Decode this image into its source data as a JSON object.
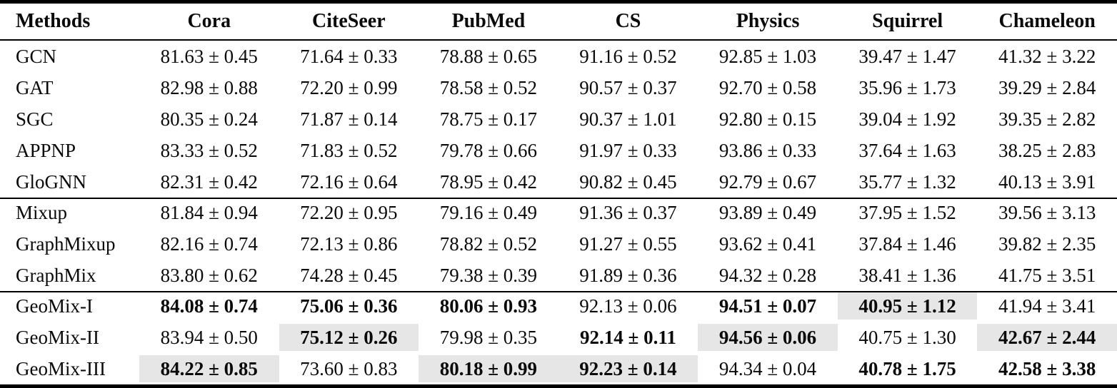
{
  "table": {
    "highlight_color": "#e6e6e6",
    "columns": [
      "Methods",
      "Cora",
      "CiteSeer",
      "PubMed",
      "CS",
      "Physics",
      "Squirrel",
      "Chameleon"
    ],
    "groups": [
      {
        "rows": [
          {
            "method": "GCN",
            "cells": [
              "81.63 ± 0.45",
              "71.64 ± 0.33",
              "78.88 ± 0.65",
              "91.16 ± 0.52",
              "92.85 ± 1.03",
              "39.47 ± 1.47",
              "41.32 ± 3.22"
            ]
          },
          {
            "method": "GAT",
            "cells": [
              "82.98 ± 0.88",
              "72.20 ± 0.99",
              "78.58 ± 0.52",
              "90.57 ± 0.37",
              "92.70 ± 0.58",
              "35.96 ± 1.73",
              "39.29 ± 2.84"
            ]
          },
          {
            "method": "SGC",
            "cells": [
              "80.35 ± 0.24",
              "71.87 ± 0.14",
              "78.75 ± 0.17",
              "90.37 ± 1.01",
              "92.80 ± 0.15",
              "39.04 ± 1.92",
              "39.35 ± 2.82"
            ]
          },
          {
            "method": "APPNP",
            "cells": [
              "83.33 ± 0.52",
              "71.83 ± 0.52",
              "79.78 ± 0.66",
              "91.97 ± 0.33",
              "93.86 ± 0.33",
              "37.64 ± 1.63",
              "38.25 ± 2.83"
            ]
          },
          {
            "method": "GloGNN",
            "cells": [
              "82.31 ± 0.42",
              "72.16 ± 0.64",
              "78.95 ± 0.42",
              "90.82 ± 0.45",
              "92.79 ± 0.67",
              "35.77 ± 1.32",
              "40.13 ± 3.91"
            ]
          }
        ]
      },
      {
        "rows": [
          {
            "method": "Mixup",
            "cells": [
              "81.84 ± 0.94",
              "72.20 ± 0.95",
              "79.16 ± 0.49",
              "91.36 ± 0.37",
              "93.89 ± 0.49",
              "37.95 ± 1.52",
              "39.56 ± 3.13"
            ]
          },
          {
            "method": "GraphMixup",
            "cells": [
              "82.16 ± 0.74",
              "72.13 ± 0.86",
              "78.82 ± 0.52",
              "91.27 ± 0.55",
              "93.62 ± 0.41",
              "37.84 ± 1.46",
              "39.82 ± 2.35"
            ]
          },
          {
            "method": "GraphMix",
            "cells": [
              "83.80 ± 0.62",
              "74.28 ± 0.45",
              "79.38 ± 0.39",
              "91.89 ± 0.36",
              "94.32 ± 0.28",
              "38.41 ± 1.36",
              "41.75 ± 3.51"
            ]
          }
        ]
      },
      {
        "rows": [
          {
            "method": "GeoMix-I",
            "cells": [
              {
                "text": "84.08 ± 0.74",
                "bold": true
              },
              {
                "text": "75.06 ± 0.36",
                "bold": true
              },
              {
                "text": "80.06 ± 0.93",
                "bold": true
              },
              "92.13 ± 0.06",
              {
                "text": "94.51 ± 0.07",
                "bold": true
              },
              {
                "text": "40.95 ± 1.12",
                "bold": true,
                "highlight": true
              },
              "41.94 ± 3.41"
            ]
          },
          {
            "method": "GeoMix-II",
            "cells": [
              "83.94 ± 0.50",
              {
                "text": "75.12 ± 0.26",
                "bold": true,
                "highlight": true
              },
              "79.98 ± 0.35",
              {
                "text": "92.14 ± 0.11",
                "bold": true
              },
              {
                "text": "94.56 ± 0.06",
                "bold": true,
                "highlight": true
              },
              "40.75 ± 1.30",
              {
                "text": "42.67 ± 2.44",
                "bold": true,
                "highlight": true
              }
            ]
          },
          {
            "method": "GeoMix-III",
            "cells": [
              {
                "text": "84.22 ± 0.85",
                "bold": true,
                "highlight": true
              },
              "73.60 ± 0.83",
              {
                "text": "80.18 ± 0.99",
                "bold": true,
                "highlight": true
              },
              {
                "text": "92.23 ± 0.14",
                "bold": true,
                "highlight": true
              },
              "94.34 ± 0.04",
              {
                "text": "40.78 ± 1.75",
                "bold": true
              },
              {
                "text": "42.58 ± 3.38",
                "bold": true
              }
            ]
          }
        ]
      }
    ]
  }
}
